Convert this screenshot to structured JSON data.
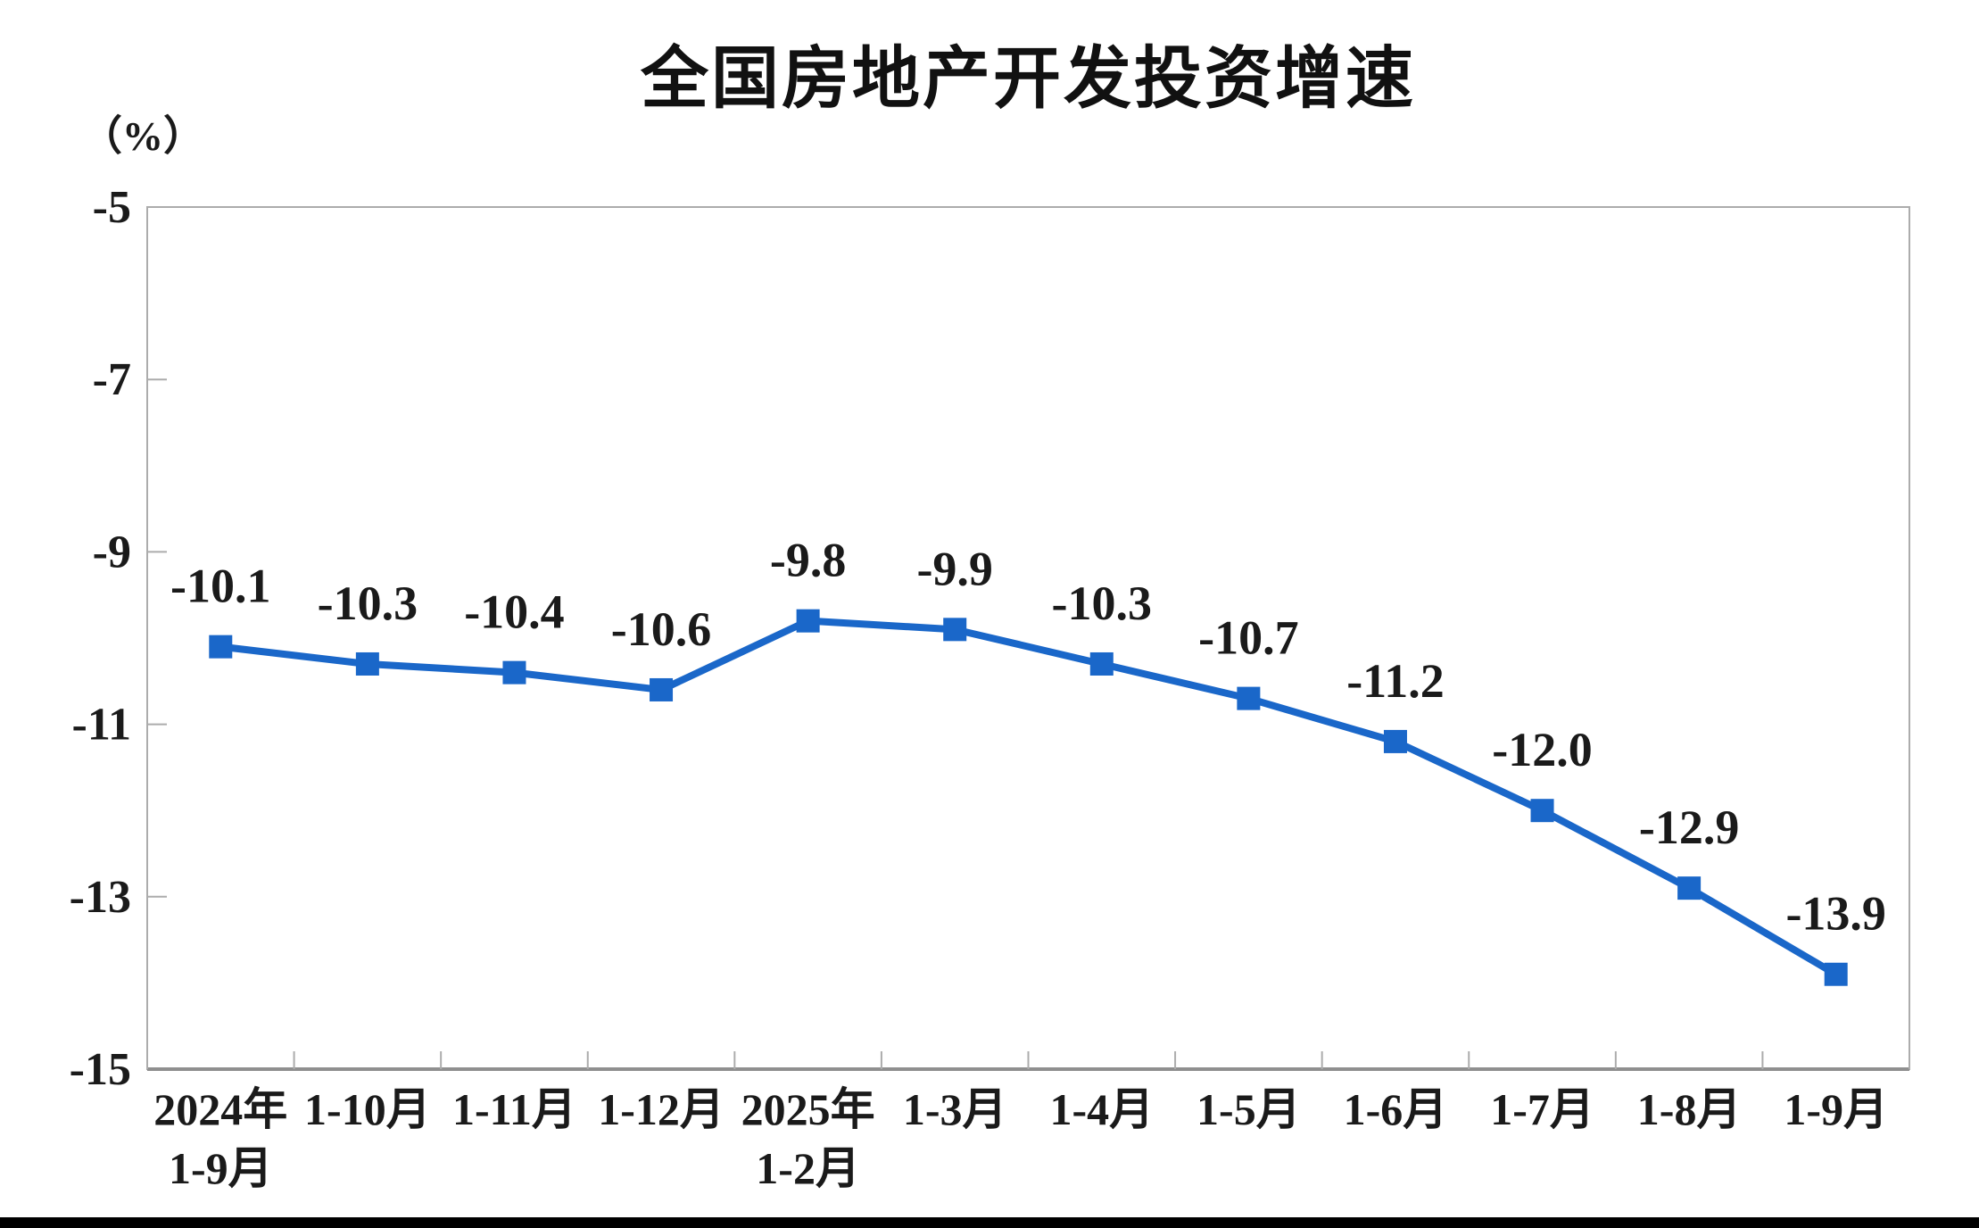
{
  "page": {
    "background_color": "#ffffff",
    "bottom_bar_color": "#000000"
  },
  "chart_data": {
    "type": "line",
    "title": "全国房地产开发投资增速",
    "unit_label": "（%）",
    "categories": [
      [
        "2024年",
        "1-9月"
      ],
      [
        "1-10月"
      ],
      [
        "1-11月"
      ],
      [
        "1-12月"
      ],
      [
        "2025年",
        "1-2月"
      ],
      [
        "1-3月"
      ],
      [
        "1-4月"
      ],
      [
        "1-5月"
      ],
      [
        "1-6月"
      ],
      [
        "1-7月"
      ],
      [
        "1-8月"
      ],
      [
        "1-9月"
      ]
    ],
    "values": [
      -10.1,
      -10.3,
      -10.4,
      -10.6,
      -9.8,
      -9.9,
      -10.3,
      -10.7,
      -11.2,
      -12.0,
      -12.9,
      -13.9
    ],
    "data_labels": [
      "-10.1",
      "-10.3",
      "-10.4",
      "-10.6",
      "-9.8",
      "-9.9",
      "-10.3",
      "-10.7",
      "-11.2",
      "-12.0",
      "-12.9",
      "-13.9"
    ],
    "ytick_labels": [
      "-5",
      "-7",
      "-9",
      "-11",
      "-13",
      "-15"
    ],
    "yticks": [
      -5,
      -7,
      -9,
      -11,
      -13,
      -15
    ],
    "ylim": [
      -15,
      -5
    ],
    "grid": false,
    "legend": "none",
    "marker": "square",
    "line_color": "#1a67c9",
    "axis_color": "#acacac",
    "axis_bottom_color": "#8f8f8f",
    "label_color": "#1a1a1a"
  }
}
